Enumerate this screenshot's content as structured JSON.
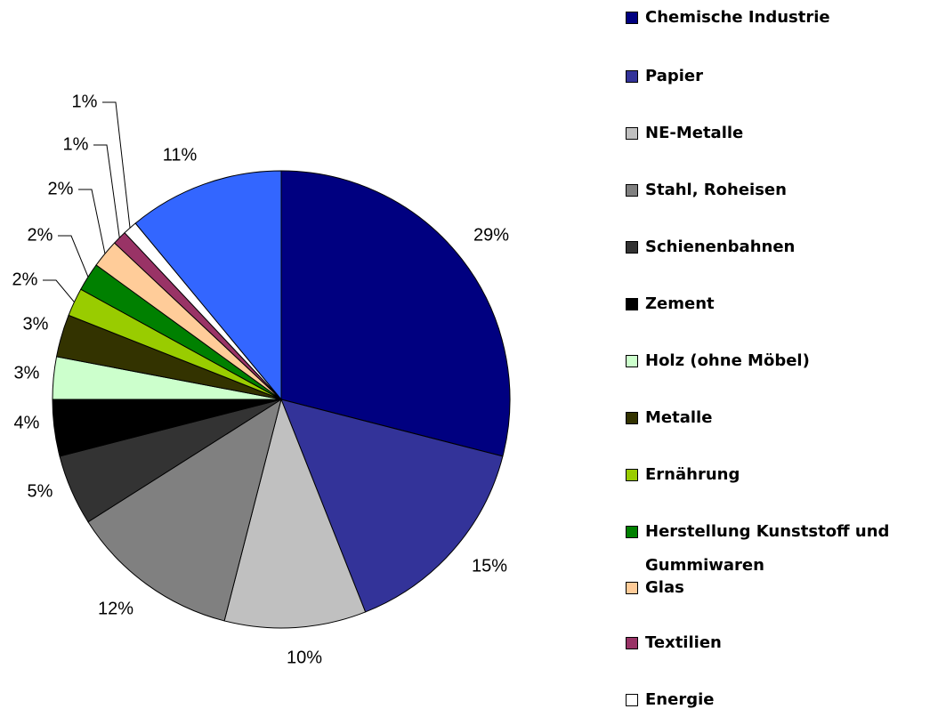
{
  "chart_data": {
    "type": "pie",
    "categories": [
      "Chemische Industrie",
      "Papier",
      "NE-Metalle",
      "Stahl, Roheisen",
      "Schienenbahnen",
      "Zement",
      "Holz (ohne Möbel)",
      "Metalle",
      "Ernährung",
      "Herstellung Kunststoff und Gummiwaren",
      "Glas",
      "Textilien",
      "Energie",
      null
    ],
    "values": [
      29,
      15,
      10,
      12,
      5,
      4,
      3,
      3,
      2,
      2,
      2,
      1,
      1,
      11
    ],
    "value_labels": [
      "29%",
      "15%",
      "10%",
      "12%",
      "5%",
      "4%",
      "3%",
      "3%",
      "2%",
      "2%",
      "2%",
      "1%",
      "1%",
      "11%"
    ],
    "colors": [
      "#000080",
      "#333399",
      "#c0c0c0",
      "#808080",
      "#333333",
      "#000000",
      "#ccffcc",
      "#333300",
      "#99cc00",
      "#008000",
      "#ffcc99",
      "#993366",
      "#ffffff",
      "#3366ff"
    ]
  }
}
